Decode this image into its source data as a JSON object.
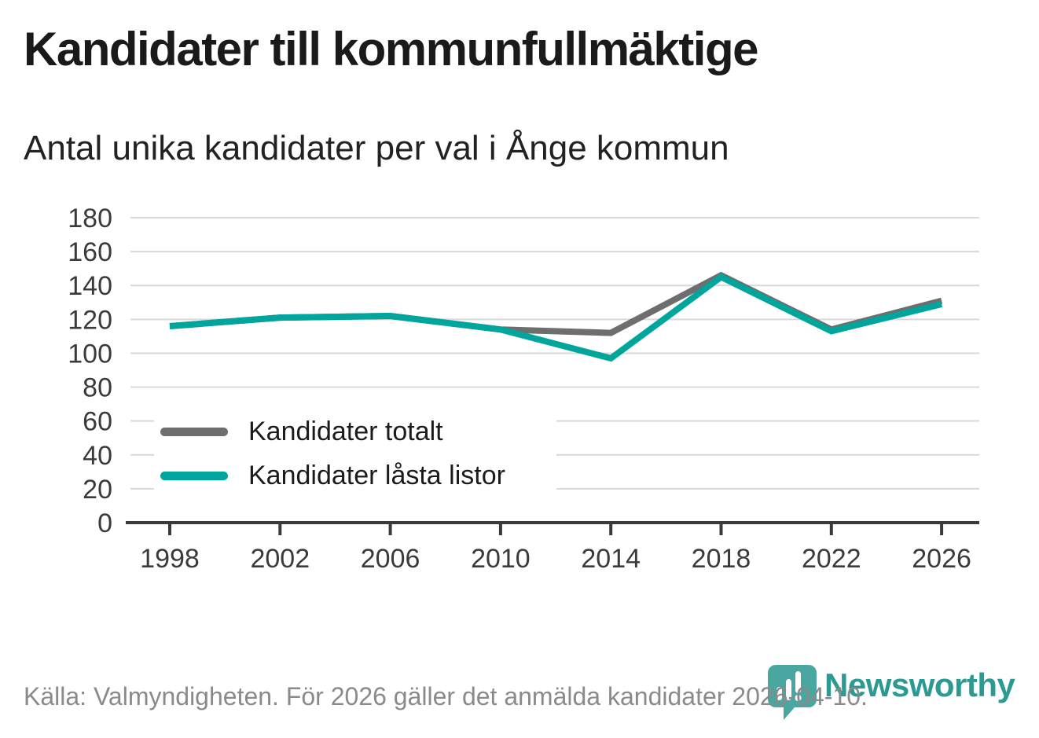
{
  "header": {
    "title": "Kandidater till kommunfullmäktige",
    "subtitle": "Antal unika kandidater per val i Ånge kommun"
  },
  "chart_data": {
    "type": "line",
    "categories": [
      "1998",
      "2002",
      "2006",
      "2010",
      "2014",
      "2018",
      "2022",
      "2026"
    ],
    "series": [
      {
        "name": "Kandidater totalt",
        "color": "#6e6e6e",
        "values": [
          116,
          121,
          122,
          114,
          112,
          146,
          114,
          131
        ]
      },
      {
        "name": "Kandidater låsta listor",
        "color": "#00a69b",
        "values": [
          116,
          121,
          122,
          114,
          97,
          145,
          113,
          129
        ]
      }
    ],
    "title": "Kandidater till kommunfullmäktige",
    "subtitle": "Antal unika kandidater per val i Ånge kommun",
    "xlabel": "",
    "ylabel": "",
    "ylim": [
      0,
      180
    ],
    "ytick_step": 20,
    "grid": "horizontal",
    "legend_position": "inside-bottom-left"
  },
  "theme": {
    "grid_color": "#d9d9d9",
    "axis_color": "#3a3a3a",
    "tick_label_color": "#3a3a3a",
    "footer_text_color": "#8a8a8a",
    "brand_color": "#2b9a93",
    "logo_icon_color": "#4aa6a1",
    "line_width": 8
  },
  "footer": {
    "source_text": "Källa: Valmyndigheten. För 2026 gäller det anmälda kandidater 2026-04-10.",
    "brand": "Newsworthy",
    "logo_icon": "newsworthy-pin-barchart-icon"
  }
}
